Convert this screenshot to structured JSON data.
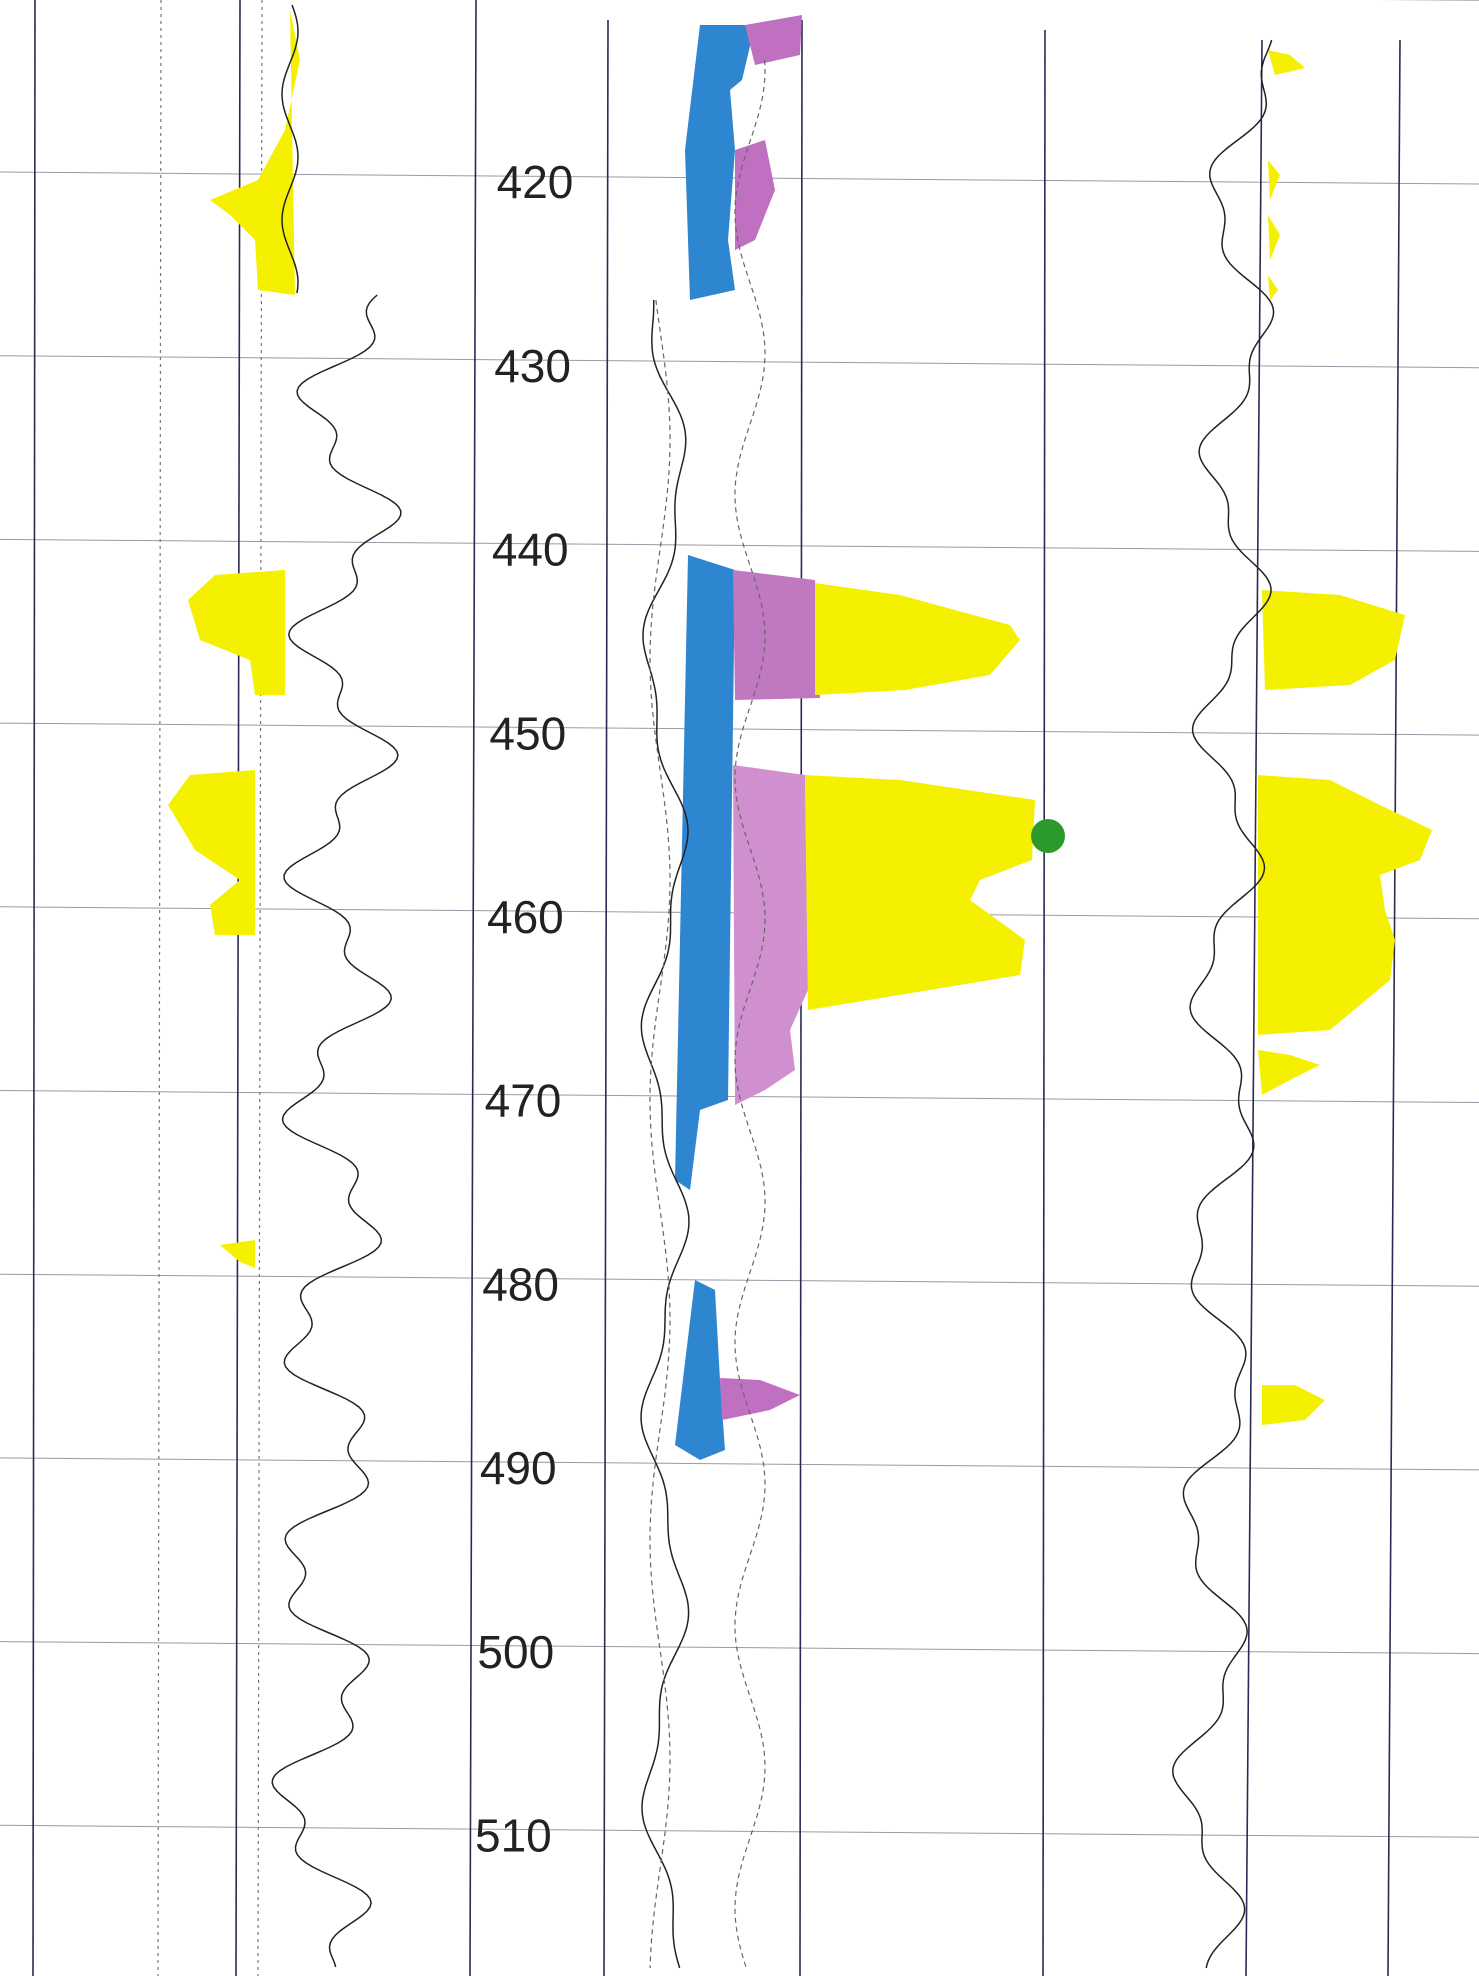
{
  "depth_track": {
    "labels": [
      420,
      430,
      440,
      450,
      460,
      470,
      480,
      490,
      500,
      510
    ]
  }
}
